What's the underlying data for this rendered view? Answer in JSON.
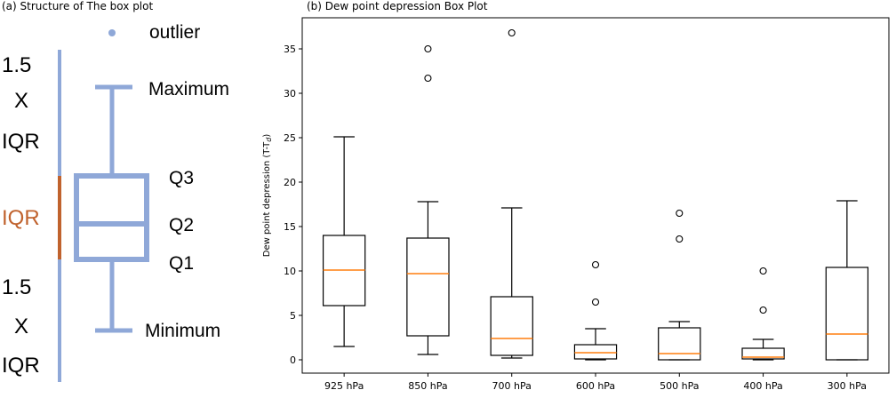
{
  "structure": {
    "title": "(a) Structure of The box plot",
    "legend_outlier": "outlier",
    "upper_range": {
      "line1": "1.5",
      "line2": "X",
      "line3": "IQR"
    },
    "iqr_label": "IQR",
    "lower_range": {
      "line1": "1.5",
      "line2": "X",
      "line3": "IQR"
    },
    "labels": {
      "maximum": "Maximum",
      "q3": "Q3",
      "q2": "Q2",
      "q1": "Q1",
      "minimum": "Minimum"
    },
    "colors": {
      "box": "#8fa8d8",
      "iqr": "#c0622d"
    }
  },
  "chart_data": {
    "type": "boxplot",
    "title": "(b) Dew point depression Box Plot",
    "ylabel": "Dew point depression (T-T",
    "ylabel_sub": "d",
    "ylabel_close": ")",
    "ylim": [
      -1.5,
      38.5
    ],
    "yticks": [
      0,
      5,
      10,
      15,
      20,
      25,
      30,
      35
    ],
    "categories": [
      "925 hPa",
      "850 hPa",
      "700 hPa",
      "600 hPa",
      "500 hPa",
      "400 hPa",
      "300 hPa"
    ],
    "boxes": [
      {
        "whislo": 1.5,
        "q1": 6.1,
        "med": 10.1,
        "q3": 14.0,
        "whishi": 25.1,
        "fliers": []
      },
      {
        "whislo": 0.6,
        "q1": 2.7,
        "med": 9.7,
        "q3": 13.7,
        "whishi": 17.8,
        "fliers": [
          31.7,
          35.0
        ]
      },
      {
        "whislo": 0.2,
        "q1": 0.5,
        "med": 2.4,
        "q3": 7.1,
        "whishi": 17.1,
        "fliers": [
          36.8
        ]
      },
      {
        "whislo": 0.0,
        "q1": 0.1,
        "med": 0.8,
        "q3": 1.7,
        "whishi": 3.5,
        "fliers": [
          6.5,
          10.7
        ]
      },
      {
        "whislo": 0.0,
        "q1": 0.0,
        "med": 0.7,
        "q3": 3.6,
        "whishi": 4.3,
        "fliers": [
          13.6,
          16.5
        ]
      },
      {
        "whislo": 0.0,
        "q1": 0.1,
        "med": 0.3,
        "q3": 1.3,
        "whishi": 2.3,
        "fliers": [
          5.6,
          10.0
        ]
      },
      {
        "whislo": 0.0,
        "q1": 0.0,
        "med": 2.9,
        "q3": 10.4,
        "whishi": 17.9,
        "fliers": []
      }
    ],
    "colors": {
      "box": "#000000",
      "median": "#ff7f0e"
    }
  }
}
